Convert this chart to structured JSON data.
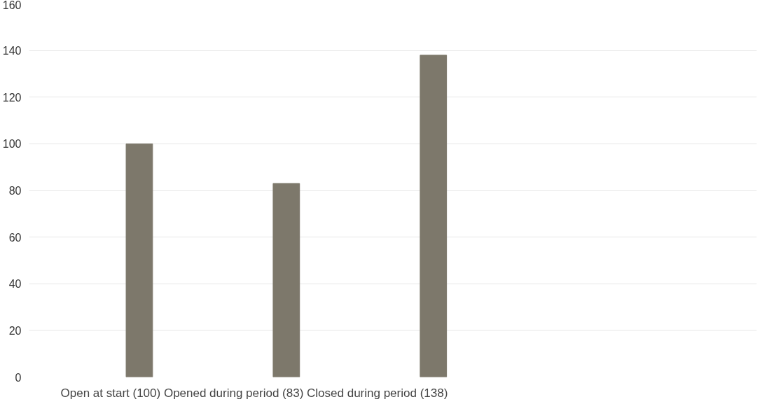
{
  "chart_data": {
    "type": "bar",
    "categories": [
      null,
      null,
      null
    ],
    "values": [
      100,
      83,
      138
    ],
    "color": "#7d786b",
    "xlabel": "Open at start (100) Opened during period (83) Closed during period (138)",
    "ylim": [
      0,
      160
    ],
    "yticks": [
      0,
      20,
      40,
      60,
      80,
      100,
      120,
      140,
      160
    ],
    "grid": "y"
  }
}
